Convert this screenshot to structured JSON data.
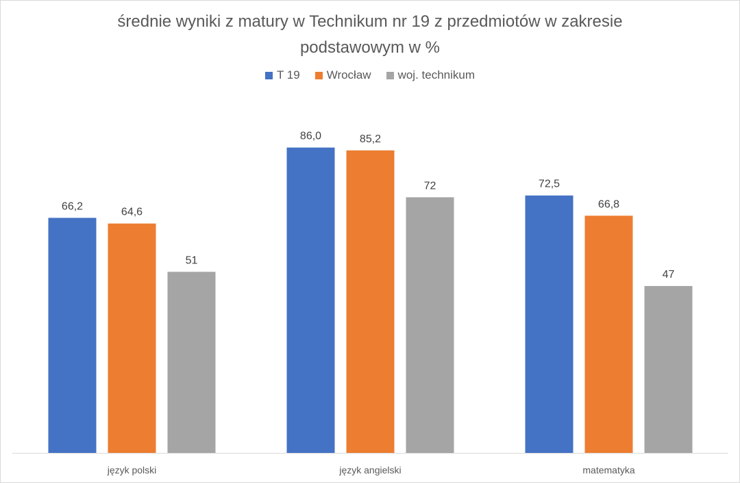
{
  "chart_data": {
    "type": "bar",
    "title_lines": [
      "średnie wyniki z matury w Technikum nr 19  z przedmiotów w zakresie",
      "podstawowym w %"
    ],
    "categories": [
      "język polski",
      "język angielski",
      "matematyka"
    ],
    "series": [
      {
        "name": "T 19",
        "color": "#4472c4",
        "values": [
          66.2,
          86.0,
          72.5
        ],
        "labels": [
          "66,2",
          "86,0",
          "72,5"
        ]
      },
      {
        "name": "Wrocław",
        "color": "#ed7d31",
        "values": [
          64.6,
          85.2,
          66.8
        ],
        "labels": [
          "64,6",
          "85,2",
          "66,8"
        ]
      },
      {
        "name": "woj. technikum",
        "color": "#a5a5a5",
        "values": [
          51,
          72,
          47
        ],
        "labels": [
          "51",
          "72",
          "47"
        ]
      }
    ],
    "xlabel": "",
    "ylabel": "",
    "ylim": [
      0,
      100
    ],
    "grid": false,
    "legend": "top"
  }
}
